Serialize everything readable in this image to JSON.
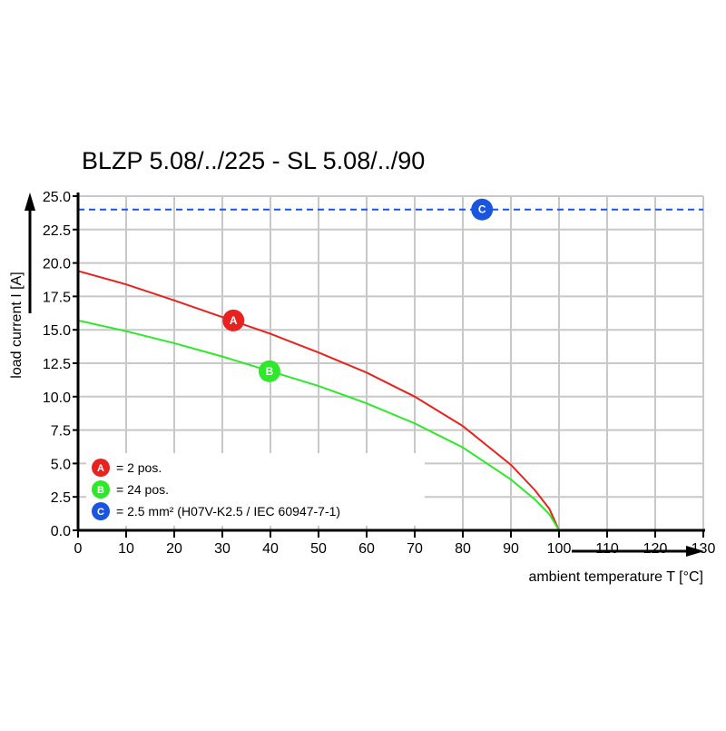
{
  "chart_data": {
    "type": "line",
    "title": "BLZP 5.08/../225 - SL 5.08/../90",
    "xlabel": "ambient temperature T [°C]",
    "ylabel": "load current I [A]",
    "xlim": [
      0,
      130
    ],
    "ylim": [
      0,
      25
    ],
    "xticks": [
      "0",
      "10",
      "20",
      "30",
      "40",
      "50",
      "60",
      "70",
      "80",
      "90",
      "100",
      "110",
      "120",
      "130"
    ],
    "yticks": [
      "0.0",
      "2.5",
      "5.0",
      "7.5",
      "10.0",
      "12.5",
      "15.0",
      "17.5",
      "20.0",
      "22.5",
      "25.0"
    ],
    "grid": true,
    "legend_placement": "bottom-left",
    "series": [
      {
        "name": "A",
        "label": "= 2 pos.",
        "color": "#e8231f",
        "style": "solid",
        "x": [
          0,
          10,
          20,
          32,
          40,
          50,
          60,
          70,
          80,
          90,
          95,
          98,
          100
        ],
        "y": [
          19.4,
          18.4,
          17.2,
          15.7,
          14.7,
          13.3,
          11.8,
          10.0,
          7.8,
          4.9,
          3.0,
          1.6,
          0
        ],
        "marker_at": [
          32.3,
          15.7
        ]
      },
      {
        "name": "B",
        "label": "= 24 pos.",
        "color": "#2ee82a",
        "style": "solid",
        "x": [
          0,
          10,
          20,
          30,
          40,
          50,
          60,
          70,
          80,
          90,
          95,
          98,
          100
        ],
        "y": [
          15.7,
          14.9,
          14.0,
          13.0,
          11.9,
          10.8,
          9.5,
          8.0,
          6.2,
          3.8,
          2.3,
          1.2,
          0
        ],
        "marker_at": [
          39.8,
          11.9
        ]
      },
      {
        "name": "C",
        "label": "= 2.5 mm² (H07V-K2.5 / IEC 60947-7-1)",
        "color": "#1a55e0",
        "style": "dashed",
        "x": [
          0,
          130
        ],
        "y": [
          24,
          24
        ],
        "marker_at": [
          84,
          24
        ]
      }
    ]
  }
}
